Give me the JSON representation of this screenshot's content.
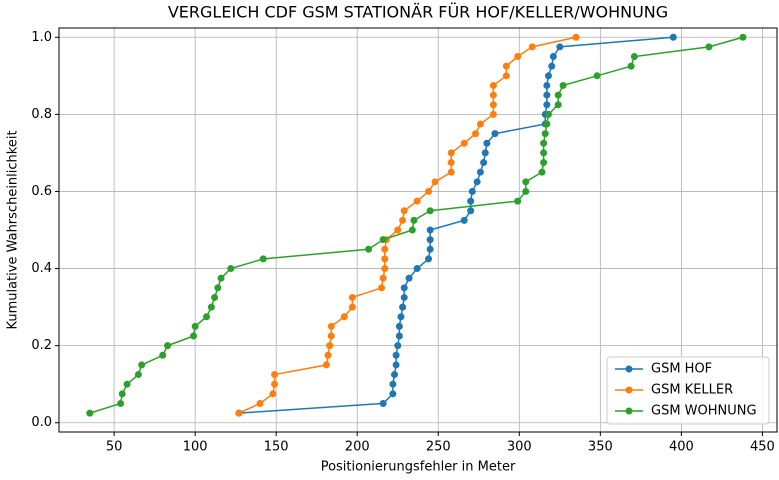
{
  "chart_data": {
    "type": "line",
    "title": "VERGLEICH CDF GSM STATIONÄR FÜR HOF/KELLER/WOHNUNG",
    "x_label": "Positionierungsfehler in Meter",
    "y_label": "Kumulative Wahrscheinlichkeit",
    "xlim": [
      16,
      459
    ],
    "ylim": [
      -0.024,
      1.024
    ],
    "xticks": [
      50,
      100,
      150,
      200,
      250,
      300,
      350,
      400,
      450
    ],
    "yticks": [
      {
        "value": 0,
        "label": "0.0"
      },
      {
        "value": 0.2,
        "label": "0.2"
      },
      {
        "value": 0.4,
        "label": "0.4"
      },
      {
        "value": 0.6,
        "label": "0.6"
      },
      {
        "value": 0.8,
        "label": "0.8"
      },
      {
        "value": 1,
        "label": "1.0"
      }
    ],
    "grid": true,
    "legend": "lower right",
    "series": [
      {
        "name": "GSM HOF",
        "color": "#1f77b4",
        "x": [
          127,
          216,
          222,
          222,
          223,
          224,
          224,
          225,
          226,
          226,
          227,
          228,
          229,
          229,
          232,
          237,
          244,
          245,
          245,
          245,
          266,
          270,
          270,
          271,
          274,
          276,
          278,
          279,
          280,
          285,
          316,
          316,
          317,
          317,
          317,
          318,
          320,
          321,
          325,
          395
        ],
        "values": [
          0.025,
          0.05,
          0.075,
          0.1,
          0.125,
          0.15,
          0.175,
          0.2,
          0.225,
          0.25,
          0.275,
          0.3,
          0.325,
          0.35,
          0.375,
          0.4,
          0.425,
          0.45,
          0.475,
          0.5,
          0.525,
          0.55,
          0.575,
          0.6,
          0.625,
          0.65,
          0.675,
          0.7,
          0.725,
          0.75,
          0.775,
          0.8,
          0.825,
          0.85,
          0.875,
          0.9,
          0.925,
          0.95,
          0.975,
          1.0
        ]
      },
      {
        "name": "GSM KELLER",
        "color": "#ff7f0e",
        "x": [
          127,
          140,
          148,
          149,
          149,
          181,
          182,
          183,
          184,
          184,
          192,
          197,
          197,
          215,
          216,
          217,
          217,
          217,
          218,
          225,
          228,
          229,
          237,
          244,
          248,
          258,
          258,
          258,
          266,
          273,
          276,
          284,
          284,
          284,
          284,
          292,
          292,
          299,
          308,
          335
        ],
        "values": [
          0.025,
          0.05,
          0.075,
          0.1,
          0.125,
          0.15,
          0.175,
          0.2,
          0.225,
          0.25,
          0.275,
          0.3,
          0.325,
          0.35,
          0.375,
          0.4,
          0.425,
          0.45,
          0.475,
          0.5,
          0.525,
          0.55,
          0.575,
          0.6,
          0.625,
          0.65,
          0.675,
          0.7,
          0.725,
          0.75,
          0.775,
          0.8,
          0.825,
          0.85,
          0.875,
          0.9,
          0.925,
          0.95,
          0.975,
          1.0
        ]
      },
      {
        "name": "GSM WOHNUNG",
        "color": "#2ca02c",
        "x": [
          35,
          54,
          55,
          58,
          65,
          67,
          80,
          83,
          99,
          100,
          107,
          110,
          112,
          114,
          116,
          122,
          142,
          207,
          216,
          234,
          235,
          245,
          299,
          304,
          304,
          314,
          315,
          315,
          315,
          316,
          317,
          318,
          324,
          324,
          327,
          348,
          369,
          371,
          417,
          438
        ],
        "values": [
          0.025,
          0.05,
          0.075,
          0.1,
          0.125,
          0.15,
          0.175,
          0.2,
          0.225,
          0.25,
          0.275,
          0.3,
          0.325,
          0.35,
          0.375,
          0.4,
          0.425,
          0.45,
          0.475,
          0.5,
          0.525,
          0.55,
          0.575,
          0.6,
          0.625,
          0.65,
          0.675,
          0.7,
          0.725,
          0.75,
          0.775,
          0.8,
          0.825,
          0.85,
          0.875,
          0.9,
          0.925,
          0.95,
          0.975,
          1.0
        ]
      }
    ]
  }
}
